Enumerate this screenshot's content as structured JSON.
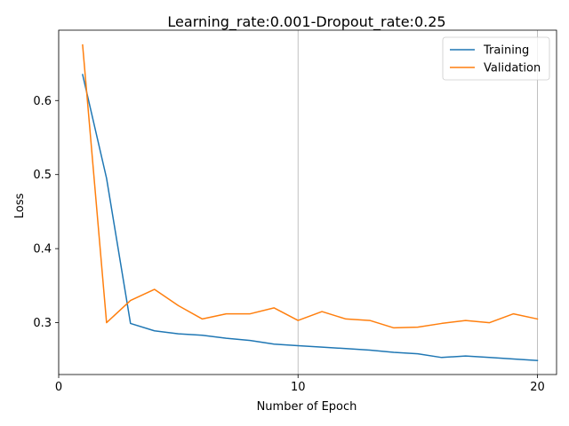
{
  "chart_data": {
    "type": "line",
    "title": "Learning_rate:0.001-Dropout_rate:0.25",
    "xlabel": "Number of Epoch",
    "ylabel": "Loss",
    "xlim": [
      0,
      20.8
    ],
    "ylim": [
      0.23,
      0.695
    ],
    "xticks": [
      0,
      10,
      20
    ],
    "yticks": [
      0.3,
      0.4,
      0.5,
      0.6
    ],
    "grid": "x-only",
    "legend_position": "top-right",
    "x": [
      1,
      2,
      3,
      4,
      5,
      6,
      7,
      8,
      9,
      10,
      11,
      12,
      13,
      14,
      15,
      16,
      17,
      18,
      19,
      20
    ],
    "series": [
      {
        "name": "Training",
        "color": "#1f77b4",
        "values": [
          0.635,
          0.495,
          0.299,
          0.289,
          0.285,
          0.283,
          0.279,
          0.276,
          0.271,
          0.269,
          0.267,
          0.265,
          0.263,
          0.26,
          0.258,
          0.253,
          0.255,
          0.253,
          0.251,
          0.249
        ]
      },
      {
        "name": "Validation",
        "color": "#ff7f0e",
        "values": [
          0.675,
          0.3,
          0.33,
          0.345,
          0.323,
          0.305,
          0.312,
          0.312,
          0.32,
          0.303,
          0.315,
          0.305,
          0.303,
          0.293,
          0.294,
          0.299,
          0.303,
          0.3,
          0.312,
          0.305
        ]
      }
    ]
  }
}
